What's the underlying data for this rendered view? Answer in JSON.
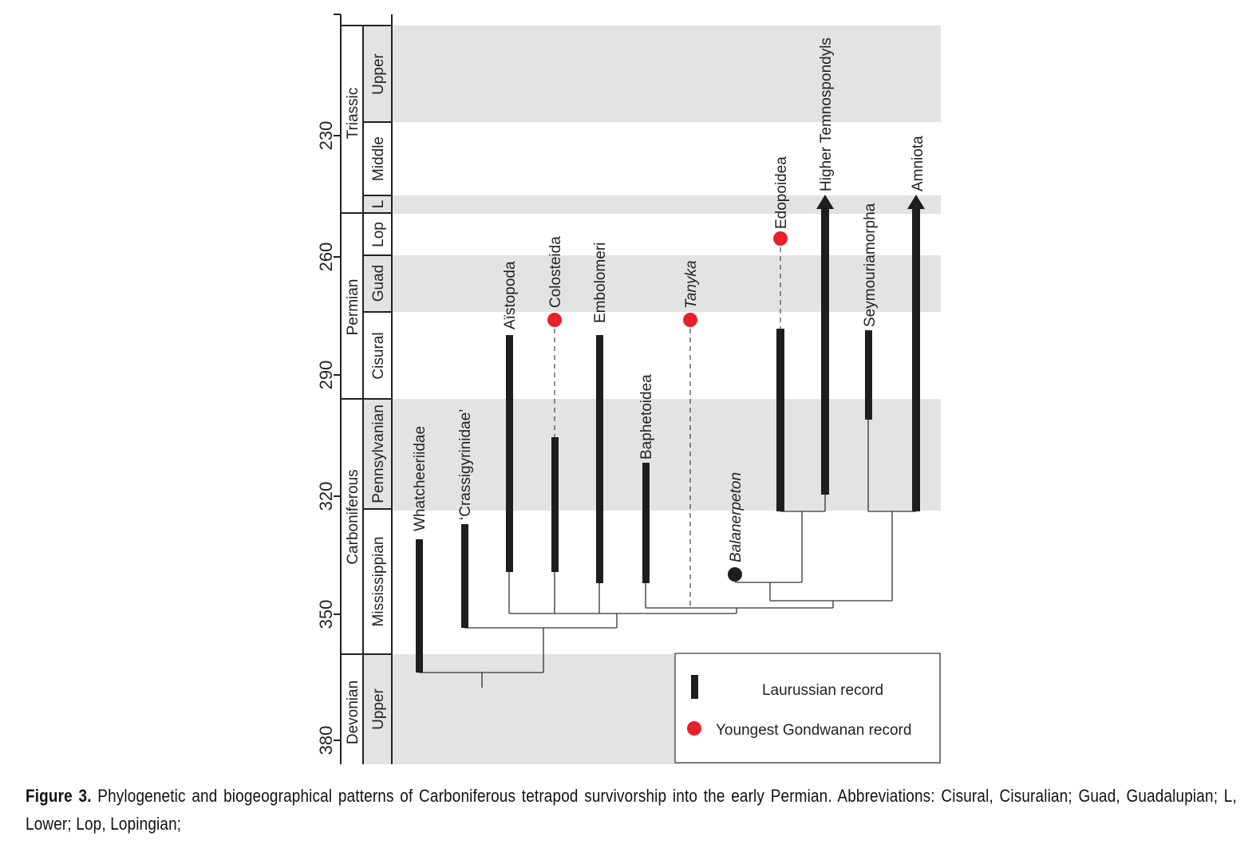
{
  "axis": {
    "ticks": [
      "230",
      "260",
      "290",
      "320",
      "350",
      "380"
    ]
  },
  "periods": [
    "Triassic",
    "Permian",
    "Carboniferous",
    "Devonian"
  ],
  "epochs": [
    "Upper",
    "Middle",
    "L",
    "Lop",
    "Guad",
    "Cisural",
    "Pennsylvanian",
    "Mississippian",
    "Upper"
  ],
  "taxa": {
    "whatcheeriidae": "Whatcheeriidae",
    "crassigyrinidae": "‘Crassigyrinidae’",
    "aistopoda": "Aïstopoda",
    "colosteida": "Colosteida",
    "embolomeri": "Embolomeri",
    "baphetoidea": "Baphetoidea",
    "tanyka": "Tanyka",
    "balanerpeton": "Balanerpeton",
    "edopoidea": "Edopoidea",
    "higher_temnospondyls": "Higher Temnospondyls",
    "seymouriamorpha": "Seymouriamorpha",
    "amniota": "Amniota"
  },
  "legend": {
    "laurussian": "Laurussian record",
    "gondwanan": "Youngest Gondwanan record"
  },
  "colors": {
    "band": "#e3e3e3",
    "bar": "#1e1e1e",
    "gondwanan": "#e8202a"
  },
  "caption": {
    "label": "Figure 3.",
    "text": " Phylogenetic and biogeographical patterns of Carboniferous tetrapod survivorship into the early Permian. Abbreviations: Cisural, Cisuralian; Guad, Guadalupian; L, Lower; Lop, Lopingian;"
  }
}
